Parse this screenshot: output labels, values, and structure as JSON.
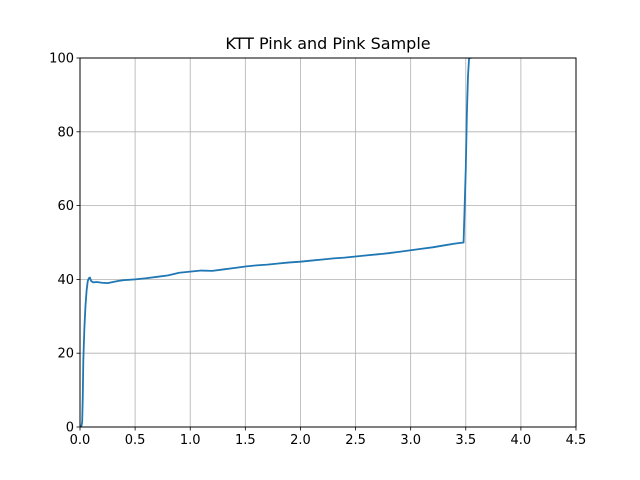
{
  "chart_data": {
    "type": "line",
    "title": "KTT Pink and Pink Sample",
    "xlabel": "",
    "ylabel": "",
    "xlim": [
      0,
      4.5
    ],
    "ylim": [
      0,
      100
    ],
    "grid": true,
    "x_ticks": [
      "0.0",
      "0.5",
      "1.0",
      "1.5",
      "2.0",
      "2.5",
      "3.0",
      "3.5",
      "4.0",
      "4.5"
    ],
    "y_ticks": [
      "0",
      "20",
      "40",
      "60",
      "80",
      "100"
    ],
    "series": [
      {
        "color": "#1f77b4",
        "x": [
          0.0,
          0.01,
          0.015,
          0.02,
          0.025,
          0.03,
          0.04,
          0.05,
          0.06,
          0.07,
          0.08,
          0.09,
          0.1,
          0.12,
          0.15,
          0.2,
          0.25,
          0.3,
          0.35,
          0.4,
          0.5,
          0.6,
          0.7,
          0.8,
          0.9,
          1.0,
          1.1,
          1.2,
          1.3,
          1.4,
          1.5,
          1.6,
          1.7,
          1.8,
          1.9,
          2.0,
          2.1,
          2.2,
          2.3,
          2.4,
          2.5,
          2.6,
          2.7,
          2.8,
          2.9,
          3.0,
          3.1,
          3.2,
          3.3,
          3.4,
          3.48,
          3.5,
          3.51,
          3.52,
          3.53,
          3.54,
          3.55
        ],
        "y": [
          0,
          0,
          0.5,
          1.5,
          8,
          18,
          27,
          33,
          37,
          39.5,
          40.3,
          40.5,
          39.6,
          39.2,
          39.3,
          39.1,
          39.0,
          39.3,
          39.6,
          39.8,
          40.0,
          40.3,
          40.7,
          41.1,
          41.8,
          42.1,
          42.4,
          42.3,
          42.7,
          43.1,
          43.5,
          43.8,
          44.0,
          44.3,
          44.6,
          44.8,
          45.1,
          45.4,
          45.7,
          45.9,
          46.2,
          46.5,
          46.8,
          47.1,
          47.5,
          47.9,
          48.3,
          48.7,
          49.2,
          49.7,
          50.0,
          70,
          85,
          95,
          100,
          100,
          100
        ]
      }
    ]
  }
}
